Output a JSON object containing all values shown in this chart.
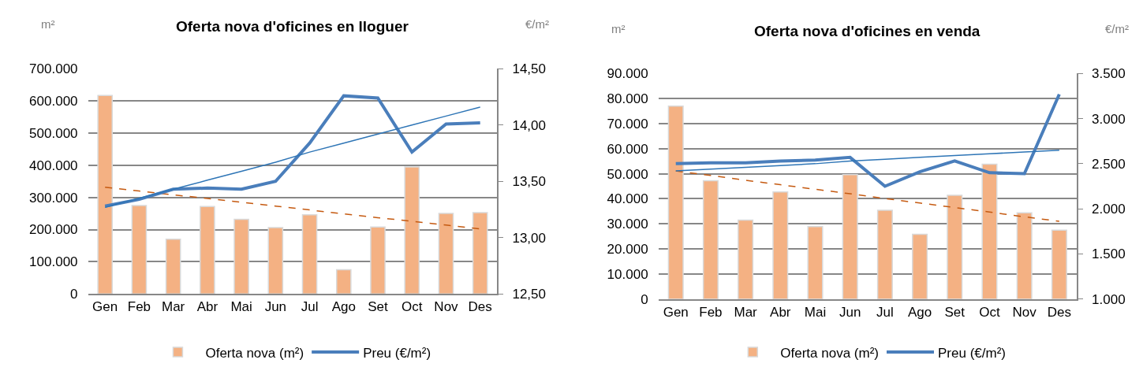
{
  "chart_data": [
    {
      "type": "bar",
      "title": "Oferta nova d'oficines en lloguer",
      "ylabel": "m²",
      "y2label": "€/m²",
      "categories": [
        "Gen",
        "Feb",
        "Mar",
        "Abr",
        "Mai",
        "Jun",
        "Jul",
        "Ago",
        "Set",
        "Oct",
        "Nov",
        "Des"
      ],
      "series": [
        {
          "name": "Oferta nova (m²)",
          "color": "#f4b183",
          "values": [
            617000,
            275000,
            170000,
            272000,
            232000,
            206000,
            246000,
            75000,
            208000,
            395000,
            250000,
            253000
          ]
        },
        {
          "name": "Preu (€/m²)",
          "type": "line",
          "axis": "y2",
          "color": "#4a7ebb",
          "line_style": "solid",
          "values": [
            13.28,
            13.34,
            13.43,
            13.44,
            13.43,
            13.5,
            13.84,
            14.26,
            14.24,
            13.76,
            14.01,
            14.02
          ]
        },
        {
          "type": "line",
          "axis": "y2",
          "color": "#2e75b6",
          "line_style": "solid",
          "values": [
            13.27,
            13.35,
            13.43,
            13.51,
            13.59,
            13.67,
            13.76,
            13.84,
            13.92,
            14.0,
            14.08,
            14.16
          ]
        },
        {
          "type": "line",
          "color": "#c55a11",
          "line_style": "dashed",
          "values": [
            332000,
            320000,
            308000,
            297000,
            285000,
            273000,
            261000,
            249000,
            237000,
            226000,
            214000,
            202000
          ]
        }
      ],
      "ylim": [
        0,
        700000
      ],
      "yticks": [
        0,
        {
          "value": 100000,
          "label": "100.000"
        },
        {
          "value": 200000,
          "label": "200.000"
        },
        {
          "value": 300000,
          "label": "300.000"
        },
        {
          "value": 400000,
          "label": "400.000"
        },
        {
          "value": 500000,
          "label": "500.000"
        },
        {
          "value": 600000,
          "label": "600.000"
        },
        {
          "value": 700000,
          "label": "700.000"
        }
      ],
      "y2lim": [
        12.5,
        14.5
      ],
      "y2ticks": [
        {
          "value": 12.5,
          "label": "12,50"
        },
        {
          "value": 13.0,
          "label": "13,00"
        },
        {
          "value": 13.5,
          "label": "13,50"
        },
        {
          "value": 14.0,
          "label": "14,00"
        },
        {
          "value": 14.5,
          "label": "14,50"
        }
      ],
      "grid": "y",
      "legend": "bottom"
    },
    {
      "type": "bar",
      "title": "Oferta nova d'oficines en venda",
      "ylabel": "m²",
      "y2label": "€/m²",
      "categories": [
        "Gen",
        "Feb",
        "Mar",
        "Abr",
        "Mai",
        "Jun",
        "Jul",
        "Ago",
        "Set",
        "Oct",
        "Nov",
        "Des"
      ],
      "series": [
        {
          "name": "Oferta nova (m²)",
          "color": "#f4b183",
          "values": [
            77000,
            47200,
            31500,
            42700,
            28900,
            49600,
            35400,
            25800,
            41400,
            53800,
            34400,
            27500
          ]
        },
        {
          "name": "Preu (€/m²)",
          "type": "line",
          "axis": "y2",
          "color": "#4a7ebb",
          "line_style": "solid",
          "values": [
            2500,
            2510,
            2510,
            2530,
            2540,
            2570,
            2250,
            2410,
            2530,
            2400,
            2390,
            3270
          ]
        },
        {
          "type": "line",
          "axis": "y2",
          "color": "#2e75b6",
          "line_style": "solid",
          "values": [
            2420,
            2440,
            2460,
            2480,
            2500,
            2530,
            2550,
            2570,
            2590,
            2610,
            2630,
            2650
          ]
        },
        {
          "type": "line",
          "color": "#c55a11",
          "line_style": "dashed",
          "values": [
            51100,
            49300,
            47400,
            45600,
            43800,
            42000,
            40100,
            38300,
            36500,
            34700,
            32800,
            31000
          ]
        }
      ],
      "ylim": [
        0,
        90000
      ],
      "yticks": [
        0,
        {
          "value": 10000,
          "label": "10.000"
        },
        {
          "value": 20000,
          "label": "20.000"
        },
        {
          "value": 30000,
          "label": "30.000"
        },
        {
          "value": 40000,
          "label": "40.000"
        },
        {
          "value": 50000,
          "label": "50.000"
        },
        {
          "value": 60000,
          "label": "60.000"
        },
        {
          "value": 70000,
          "label": "70.000"
        },
        {
          "value": 80000,
          "label": "80.000"
        },
        {
          "value": 90000,
          "label": "90.000"
        }
      ],
      "y2lim": [
        1000,
        3500
      ],
      "y2ticks": [
        {
          "value": 1000,
          "label": "1.000"
        },
        {
          "value": 1500,
          "label": "1.500"
        },
        {
          "value": 2000,
          "label": "2.000"
        },
        {
          "value": 2500,
          "label": "2.500"
        },
        {
          "value": 3000,
          "label": "3.000"
        },
        {
          "value": 3500,
          "label": "3.500"
        }
      ],
      "grid": "y",
      "legend": "bottom"
    }
  ]
}
